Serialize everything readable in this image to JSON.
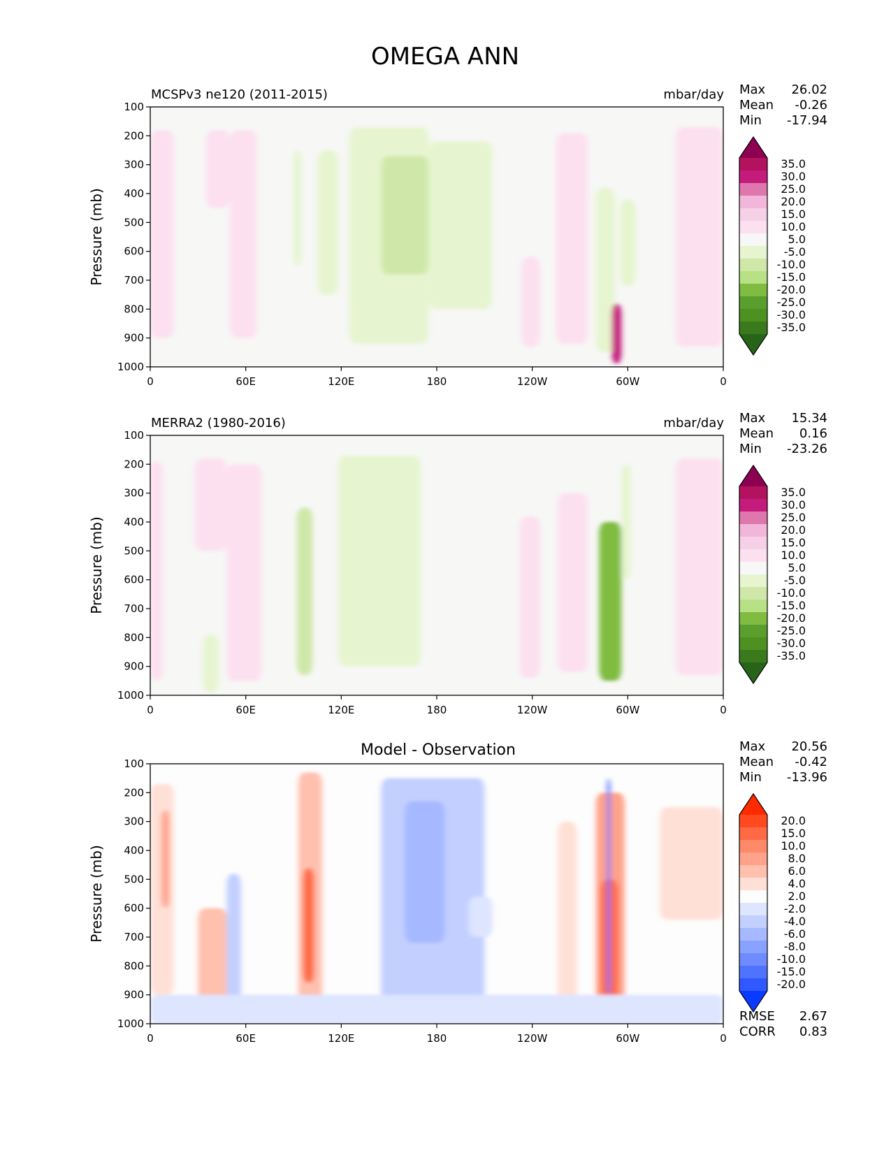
{
  "figure_title": "OMEGA ANN",
  "axes_common": {
    "ylabel": "Pressure (mb)",
    "yticks": [
      "100",
      "200",
      "300",
      "400",
      "500",
      "600",
      "700",
      "800",
      "900",
      "1000"
    ],
    "xticks": [
      "0",
      "60E",
      "120E",
      "180",
      "120W",
      "60W",
      "0"
    ]
  },
  "panels": [
    {
      "id": "model",
      "left_title": "MCSPv3 ne120 (2011-2015)",
      "center_title": "",
      "units": "mbar/day",
      "stats": [
        {
          "label": "Max",
          "value": "26.02"
        },
        {
          "label": "Mean",
          "value": "-0.26"
        },
        {
          "label": "Min",
          "value": "-17.94"
        }
      ],
      "extra_stats": [],
      "colorbar": {
        "labels": [
          "35.0",
          "30.0",
          "25.0",
          "20.0",
          "15.0",
          "10.0",
          "5.0",
          "-5.0",
          "-10.0",
          "-15.0",
          "-20.0",
          "-25.0",
          "-30.0",
          "-35.0"
        ],
        "colors": [
          "#8e0152",
          "#b3125f",
          "#c51b7d",
          "#de77ae",
          "#f1b6da",
          "#f6d0e6",
          "#fde0ef",
          "#f7f7f7",
          "#e6f5d0",
          "#cfe8a9",
          "#b8e186",
          "#7fbc41",
          "#5a9e2e",
          "#4d9221",
          "#3a7a1c",
          "#276419"
        ]
      }
    },
    {
      "id": "obs",
      "left_title": "MERRA2 (1980-2016)",
      "center_title": "",
      "units": "mbar/day",
      "stats": [
        {
          "label": "Max",
          "value": "15.34"
        },
        {
          "label": "Mean",
          "value": "0.16"
        },
        {
          "label": "Min",
          "value": "-23.26"
        }
      ],
      "extra_stats": [],
      "colorbar": {
        "labels": [
          "35.0",
          "30.0",
          "25.0",
          "20.0",
          "15.0",
          "10.0",
          "5.0",
          "-5.0",
          "-10.0",
          "-15.0",
          "-20.0",
          "-25.0",
          "-30.0",
          "-35.0"
        ],
        "colors": [
          "#8e0152",
          "#b3125f",
          "#c51b7d",
          "#de77ae",
          "#f1b6da",
          "#f6d0e6",
          "#fde0ef",
          "#f7f7f7",
          "#e6f5d0",
          "#cfe8a9",
          "#b8e186",
          "#7fbc41",
          "#5a9e2e",
          "#4d9221",
          "#3a7a1c",
          "#276419"
        ]
      }
    },
    {
      "id": "diff",
      "left_title": "",
      "center_title": "Model - Observation",
      "units": "",
      "stats": [
        {
          "label": "Max",
          "value": "20.56"
        },
        {
          "label": "Mean",
          "value": "-0.42"
        },
        {
          "label": "Min",
          "value": "-13.96"
        }
      ],
      "extra_stats": [
        {
          "label": "RMSE",
          "value": "2.67"
        },
        {
          "label": "CORR",
          "value": "0.83"
        }
      ],
      "colorbar": {
        "labels": [
          "20.0",
          "15.0",
          "10.0",
          "8.0",
          "6.0",
          "4.0",
          "2.0",
          "-2.0",
          "-4.0",
          "-6.0",
          "-8.0",
          "-10.0",
          "-15.0",
          "-20.0"
        ],
        "colors": [
          "#ff2a00",
          "#ff4a20",
          "#ff6a45",
          "#ff8a6a",
          "#ffa28a",
          "#ffc0ae",
          "#ffe0d6",
          "#fdfdfd",
          "#dde5ff",
          "#c2cfff",
          "#a6b8ff",
          "#8aa2ff",
          "#6e8bff",
          "#4f73ff",
          "#3058ff",
          "#0a3aff"
        ]
      }
    }
  ],
  "chart_data": [
    {
      "type": "heatmap",
      "title": "MCSPv3 ne120 (2011-2015)",
      "units": "mbar/day",
      "xlabel": "",
      "ylabel": "Pressure (mb)",
      "x_range": [
        "0",
        "360"
      ],
      "x_ticks": [
        "0",
        "60E",
        "120E",
        "180",
        "120W",
        "60W",
        "0"
      ],
      "y_range": [
        100,
        1000
      ],
      "y_inverted": true,
      "levels": [
        -35,
        -30,
        -25,
        -20,
        -15,
        -10,
        -5,
        5,
        10,
        15,
        20,
        25,
        30,
        35
      ],
      "stats": {
        "max": 26.02,
        "mean": -0.26,
        "min": -17.94
      },
      "features": [
        {
          "lon": [
            0,
            15
          ],
          "p": [
            180,
            900
          ],
          "value": 10
        },
        {
          "lon": [
            35,
            50
          ],
          "p": [
            180,
            450
          ],
          "value": 6
        },
        {
          "lon": [
            50,
            67
          ],
          "p": [
            180,
            900
          ],
          "value": 7
        },
        {
          "lon": [
            90,
            95
          ],
          "p": [
            250,
            650
          ],
          "value": -6
        },
        {
          "lon": [
            105,
            118
          ],
          "p": [
            250,
            750
          ],
          "value": -6
        },
        {
          "lon": [
            125,
            175
          ],
          "p": [
            170,
            920
          ],
          "value": -8
        },
        {
          "lon": [
            145,
            175
          ],
          "p": [
            270,
            680
          ],
          "value": -12
        },
        {
          "lon": [
            175,
            215
          ],
          "p": [
            220,
            800
          ],
          "value": -6
        },
        {
          "lon": [
            233,
            245
          ],
          "p": [
            620,
            930
          ],
          "value": 8
        },
        {
          "lon": [
            255,
            275
          ],
          "p": [
            190,
            920
          ],
          "value": 10
        },
        {
          "lon": [
            280,
            292
          ],
          "p": [
            380,
            950
          ],
          "value": -7
        },
        {
          "lon": [
            290,
            296
          ],
          "p": [
            780,
            990
          ],
          "value": 30
        },
        {
          "lon": [
            295,
            305
          ],
          "p": [
            420,
            720
          ],
          "value": -6
        },
        {
          "lon": [
            330,
            360
          ],
          "p": [
            170,
            930
          ],
          "value": 8
        }
      ]
    },
    {
      "type": "heatmap",
      "title": "MERRA2 (1980-2016)",
      "units": "mbar/day",
      "xlabel": "",
      "ylabel": "Pressure (mb)",
      "x_range": [
        "0",
        "360"
      ],
      "x_ticks": [
        "0",
        "60E",
        "120E",
        "180",
        "120W",
        "60W",
        "0"
      ],
      "y_range": [
        100,
        1000
      ],
      "y_inverted": true,
      "levels": [
        -35,
        -30,
        -25,
        -20,
        -15,
        -10,
        -5,
        5,
        10,
        15,
        20,
        25,
        30,
        35
      ],
      "stats": {
        "max": 15.34,
        "mean": 0.16,
        "min": -23.26
      },
      "features": [
        {
          "lon": [
            0,
            8
          ],
          "p": [
            190,
            950
          ],
          "value": 6
        },
        {
          "lon": [
            28,
            48
          ],
          "p": [
            180,
            500
          ],
          "value": 6
        },
        {
          "lon": [
            48,
            70
          ],
          "p": [
            200,
            950
          ],
          "value": 8
        },
        {
          "lon": [
            33,
            43
          ],
          "p": [
            790,
            990
          ],
          "value": -8
        },
        {
          "lon": [
            92,
            102
          ],
          "p": [
            350,
            930
          ],
          "value": -10
        },
        {
          "lon": [
            118,
            170
          ],
          "p": [
            170,
            900
          ],
          "value": -7
        },
        {
          "lon": [
            232,
            245
          ],
          "p": [
            380,
            940
          ],
          "value": 8
        },
        {
          "lon": [
            256,
            275
          ],
          "p": [
            300,
            920
          ],
          "value": 7
        },
        {
          "lon": [
            282,
            296
          ],
          "p": [
            400,
            950
          ],
          "value": -20
        },
        {
          "lon": [
            296,
            302
          ],
          "p": [
            200,
            600
          ],
          "value": -7
        },
        {
          "lon": [
            330,
            360
          ],
          "p": [
            180,
            930
          ],
          "value": 7
        }
      ]
    },
    {
      "type": "heatmap",
      "title": "Model - Observation",
      "units": "",
      "xlabel": "",
      "ylabel": "Pressure (mb)",
      "x_range": [
        "0",
        "360"
      ],
      "x_ticks": [
        "0",
        "60E",
        "120E",
        "180",
        "120W",
        "60W",
        "0"
      ],
      "y_range": [
        100,
        1000
      ],
      "y_inverted": true,
      "levels": [
        -20,
        -15,
        -10,
        -8,
        -6,
        -4,
        -2,
        2,
        4,
        6,
        8,
        10,
        15,
        20
      ],
      "stats": {
        "max": 20.56,
        "mean": -0.42,
        "min": -13.96,
        "rmse": 2.67,
        "corr": 0.83
      },
      "features": [
        {
          "lon": [
            0,
            15
          ],
          "p": [
            170,
            900
          ],
          "value": 4
        },
        {
          "lon": [
            7,
            12
          ],
          "p": [
            260,
            600
          ],
          "value": 7
        },
        {
          "lon": [
            30,
            48
          ],
          "p": [
            600,
            990
          ],
          "value": 5
        },
        {
          "lon": [
            48,
            57
          ],
          "p": [
            480,
            990
          ],
          "value": -4
        },
        {
          "lon": [
            93,
            108
          ],
          "p": [
            130,
            990
          ],
          "value": 6
        },
        {
          "lon": [
            96,
            103
          ],
          "p": [
            460,
            860
          ],
          "value": 12
        },
        {
          "lon": [
            145,
            210
          ],
          "p": [
            150,
            990
          ],
          "value": -4
        },
        {
          "lon": [
            160,
            185
          ],
          "p": [
            230,
            720
          ],
          "value": -7
        },
        {
          "lon": [
            200,
            215
          ],
          "p": [
            560,
            700
          ],
          "value": -3
        },
        {
          "lon": [
            256,
            268
          ],
          "p": [
            300,
            950
          ],
          "value": 4
        },
        {
          "lon": [
            280,
            298
          ],
          "p": [
            200,
            990
          ],
          "value": 8
        },
        {
          "lon": [
            283,
            294
          ],
          "p": [
            500,
            960
          ],
          "value": 15
        },
        {
          "lon": [
            287,
            289
          ],
          "p": [
            150,
            900
          ],
          "value": -15
        },
        {
          "lon": [
            320,
            360
          ],
          "p": [
            250,
            640
          ],
          "value": 3
        },
        {
          "lon": [
            0,
            360
          ],
          "p": [
            900,
            1000
          ],
          "value": -3
        }
      ]
    }
  ]
}
